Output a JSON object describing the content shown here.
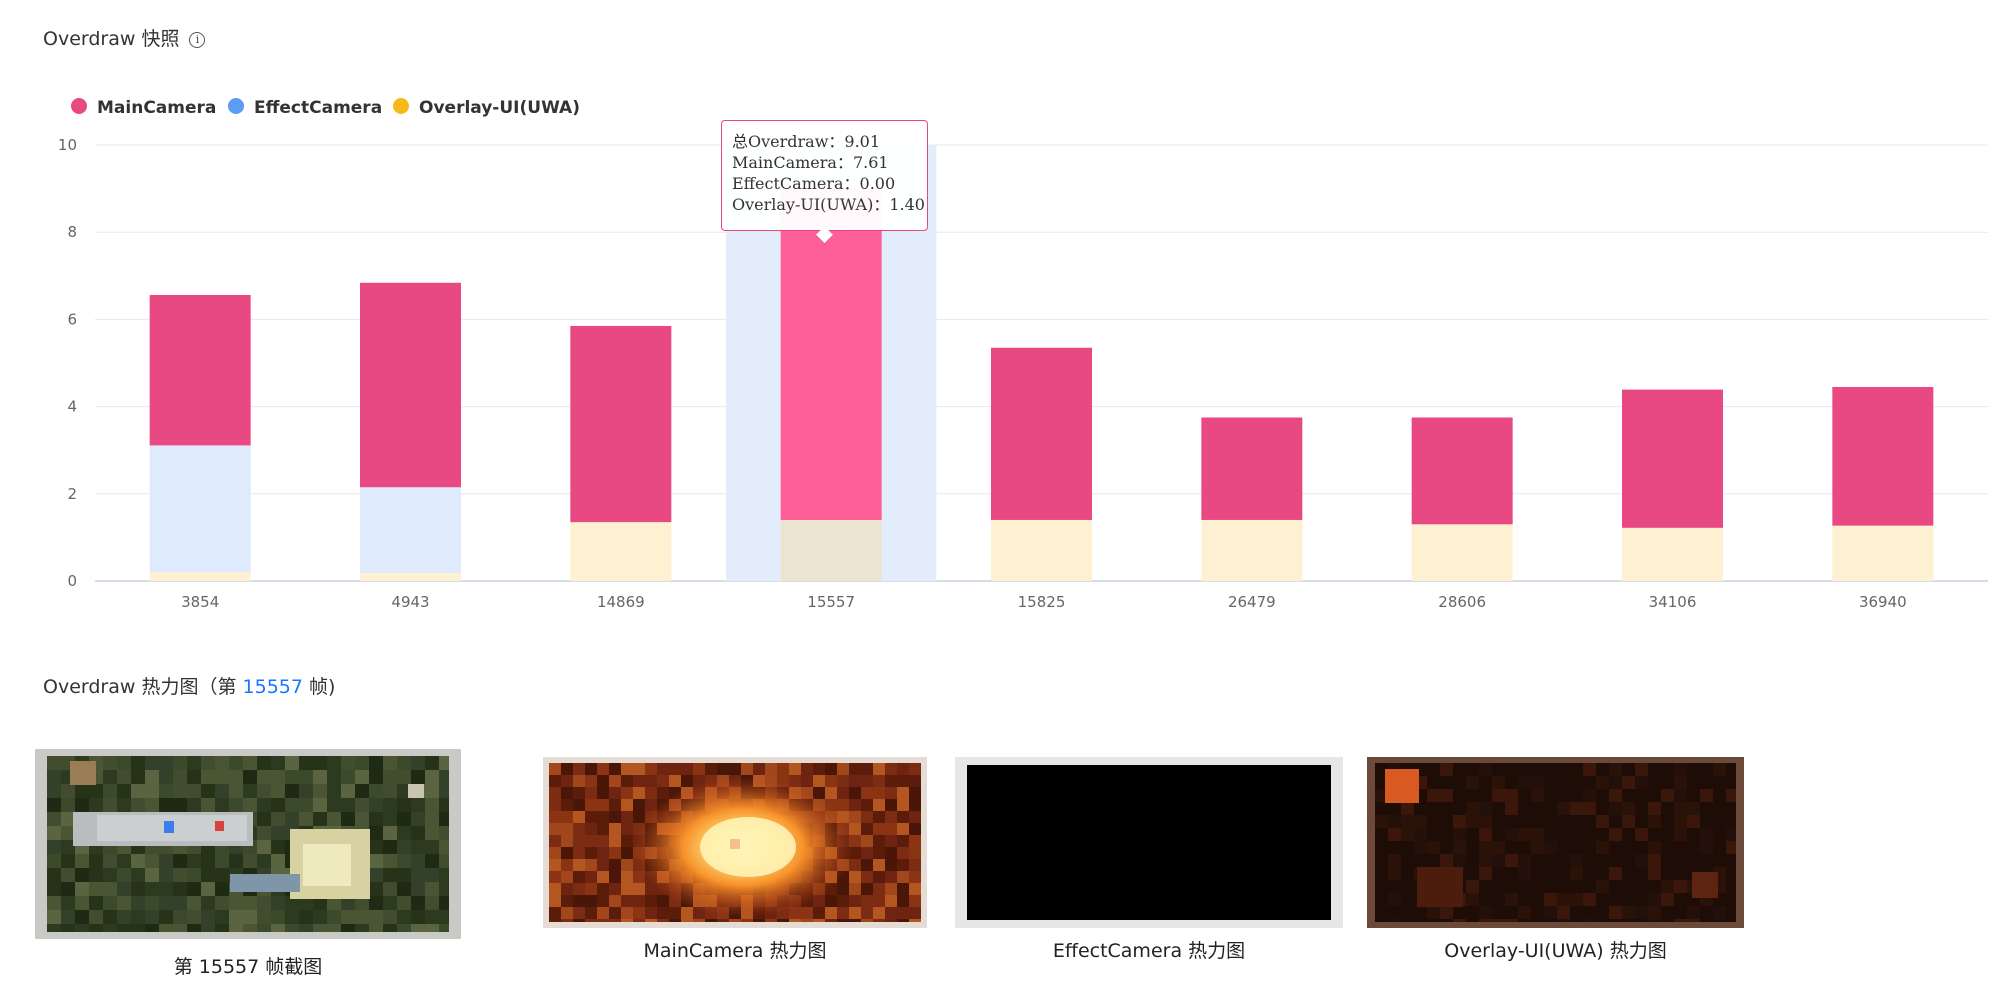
{
  "snapshot_title": "Overdraw 快照",
  "heatmap_section": {
    "title_prefix": "Overdraw 热力图（第 ",
    "frame": "15557",
    "title_suffix": " 帧)"
  },
  "chart_data": {
    "type": "bar",
    "stacked": true,
    "categories": [
      "3854",
      "4943",
      "14869",
      "15557",
      "15825",
      "26479",
      "28606",
      "34106",
      "36940"
    ],
    "series": [
      {
        "name": "Overlay-UI(UWA)",
        "color": "#fdf1d2",
        "values": [
          0.2,
          0.18,
          1.35,
          1.4,
          1.4,
          1.4,
          1.3,
          1.22,
          1.27
        ]
      },
      {
        "name": "EffectCamera",
        "color": "#dfeafd",
        "values": [
          2.91,
          1.97,
          0.0,
          0.0,
          0.0,
          0.0,
          0.0,
          0.0,
          0.0
        ]
      },
      {
        "name": "MainCamera",
        "color": "#e94982",
        "values": [
          3.45,
          4.69,
          4.5,
          7.61,
          3.95,
          2.35,
          2.45,
          3.17,
          3.18
        ]
      }
    ],
    "legend": [
      {
        "name": "MainCamera",
        "color": "#e94982"
      },
      {
        "name": "EffectCamera",
        "color": "#5b9cf6"
      },
      {
        "name": "Overlay-UI(UWA)",
        "color": "#f7b91a"
      }
    ],
    "legend_position": "top-left",
    "yticks": [
      0,
      2,
      4,
      6,
      8,
      10
    ],
    "ylim": [
      0,
      10
    ],
    "grid": true,
    "highlighted_category": "15557",
    "highlight_color": "#e3ecfb",
    "highlight_maincamera_color": "#ff5f98",
    "highlight_overlay_color": "#ebe4d0"
  },
  "tooltip": {
    "rows": [
      "总Overdraw：9.01",
      "MainCamera：7.61",
      "EffectCamera：0.00",
      "Overlay-UI(UWA)：1.40"
    ]
  },
  "thumbnails": [
    {
      "label": "第 15557 帧截图",
      "kind": "screenshot"
    },
    {
      "label": "MainCamera 热力图",
      "kind": "main-heatmap"
    },
    {
      "label": "EffectCamera 热力图",
      "kind": "effect-heatmap"
    },
    {
      "label": "Overlay-UI(UWA) 热力图",
      "kind": "overlay-heatmap"
    }
  ]
}
